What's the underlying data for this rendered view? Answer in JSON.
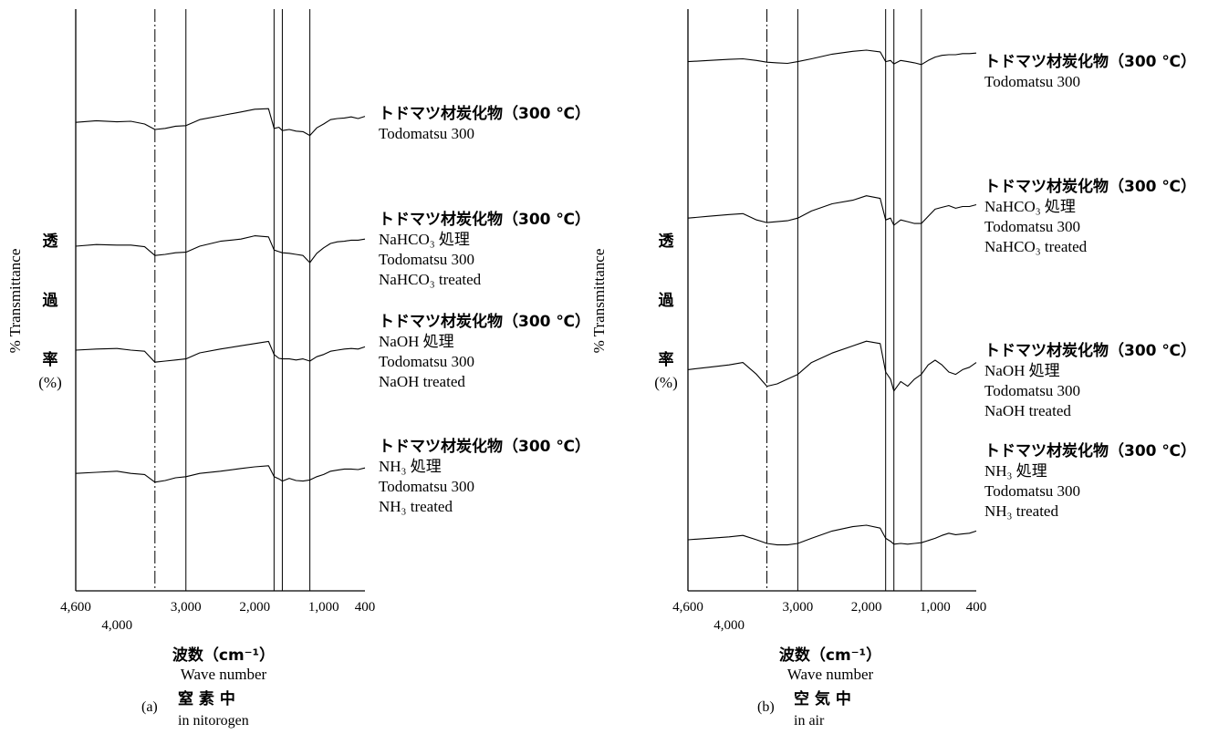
{
  "chart_data": [
    {
      "type": "line",
      "panel": "a",
      "xlabel_ja": "波数（cm⁻¹）",
      "xlabel_en": "Wave number",
      "ylabel_ja": [
        "透",
        "過",
        "率",
        "(%)"
      ],
      "ylabel_en": "% Transmittance",
      "caption_mark": "(a)",
      "caption_ja": "窒 素 中",
      "caption_en": "in nitorogen",
      "xlim": [
        4600,
        400
      ],
      "x_ticks": [
        "4,600",
        "3,000",
        "2,000",
        "1,000",
        "400"
      ],
      "x_ticks_lower": [
        "4,000"
      ],
      "reference_lines_cm1": [
        3450,
        3000,
        1720,
        1600,
        1200
      ],
      "series": [
        {
          "label": [
            "トドマツ材炭化物（300 ℃）",
            "Todomatsu 300"
          ],
          "x": [
            4600,
            4300,
            4000,
            3800,
            3600,
            3450,
            3300,
            3150,
            3000,
            2800,
            2500,
            2200,
            2000,
            1800,
            1720,
            1650,
            1600,
            1500,
            1400,
            1300,
            1200,
            1100,
            1000,
            900,
            800,
            700,
            600,
            500,
            400
          ],
          "y": [
            73,
            76,
            74,
            75,
            70,
            60,
            62,
            66,
            67,
            78,
            85,
            92,
            97,
            98,
            62,
            64,
            58,
            60,
            57,
            56,
            49,
            63,
            70,
            78,
            80,
            81,
            83,
            80,
            84
          ]
        },
        {
          "label": [
            "トドマツ材炭化物（300 ℃）",
            "NaHCO₃ 処理",
            "Todomatsu 300",
            "NaHCO₃ treated"
          ],
          "x": [
            4600,
            4300,
            4000,
            3800,
            3600,
            3450,
            3300,
            3150,
            3000,
            2800,
            2500,
            2200,
            2000,
            1800,
            1720,
            1650,
            1600,
            1500,
            1400,
            1300,
            1200,
            1100,
            1000,
            900,
            800,
            700,
            600,
            500,
            400
          ],
          "y": [
            55,
            58,
            57,
            57,
            54,
            38,
            40,
            43,
            44,
            55,
            64,
            68,
            74,
            72,
            48,
            45,
            43,
            42,
            40,
            38,
            25,
            42,
            52,
            60,
            63,
            64,
            66,
            66,
            68
          ]
        },
        {
          "label": [
            "トドマツ材炭化物（300 ℃）",
            "NaOH 処理",
            "Todomatsu 300",
            "NaOH treated"
          ],
          "x": [
            4600,
            4300,
            4000,
            3800,
            3600,
            3450,
            3300,
            3150,
            3000,
            2800,
            2500,
            2200,
            2000,
            1800,
            1720,
            1650,
            1600,
            1500,
            1400,
            1300,
            1200,
            1100,
            1000,
            900,
            800,
            700,
            600,
            500,
            400
          ],
          "y": [
            40,
            42,
            43,
            40,
            38,
            18,
            20,
            22,
            24,
            35,
            42,
            48,
            52,
            56,
            32,
            25,
            24,
            24,
            22,
            24,
            20,
            28,
            32,
            38,
            40,
            42,
            43,
            42,
            46
          ]
        },
        {
          "label": [
            "トドマツ材炭化物（300 ℃）",
            "NH₃ 処理",
            "Todomatsu 300",
            "NH₃ treated"
          ],
          "x": [
            4600,
            4300,
            4000,
            3800,
            3600,
            3450,
            3300,
            3150,
            3000,
            2800,
            2500,
            2200,
            2000,
            1800,
            1720,
            1650,
            1600,
            1500,
            1400,
            1300,
            1200,
            1100,
            1000,
            900,
            800,
            700,
            600,
            500,
            400
          ],
          "y": [
            18,
            20,
            22,
            18,
            16,
            2,
            5,
            10,
            12,
            18,
            22,
            27,
            30,
            32,
            12,
            8,
            4,
            9,
            5,
            4,
            6,
            12,
            16,
            22,
            24,
            26,
            26,
            25,
            28
          ]
        }
      ]
    },
    {
      "type": "line",
      "panel": "b",
      "xlabel_ja": "波数（cm⁻¹）",
      "xlabel_en": "Wave number",
      "ylabel_ja": [
        "透",
        "過",
        "率",
        "(%)"
      ],
      "ylabel_en": "% Transmittance",
      "caption_mark": "(b)",
      "caption_ja": "空 気 中",
      "caption_en": "in air",
      "xlim": [
        4600,
        400
      ],
      "x_ticks": [
        "4,600",
        "3,000",
        "2,000",
        "1,000",
        "400"
      ],
      "x_ticks_lower": [
        "4,000"
      ],
      "reference_lines_cm1": [
        3450,
        3000,
        1720,
        1600,
        1200
      ],
      "series": [
        {
          "label": [
            "トドマツ材炭化物（300 ℃）",
            "Todomatsu 300"
          ],
          "x": [
            4600,
            4300,
            4000,
            3800,
            3600,
            3450,
            3300,
            3150,
            3000,
            2800,
            2500,
            2200,
            2000,
            1800,
            1720,
            1650,
            1600,
            1500,
            1400,
            1300,
            1200,
            1100,
            1000,
            900,
            800,
            700,
            600,
            500,
            400
          ],
          "y": [
            80,
            82,
            84,
            85,
            82,
            79,
            78,
            77,
            80,
            85,
            93,
            98,
            100,
            97,
            80,
            82,
            76,
            82,
            80,
            78,
            75,
            82,
            88,
            91,
            92,
            92,
            94,
            94,
            95
          ]
        },
        {
          "label": [
            "トドマツ材炭化物（300 ℃）",
            "NaHCO₃ 処理",
            "Todomatsu 300",
            "NaHCO₃ treated"
          ],
          "x": [
            4600,
            4300,
            4000,
            3800,
            3600,
            3450,
            3300,
            3150,
            3000,
            2800,
            2500,
            2200,
            2000,
            1800,
            1720,
            1650,
            1600,
            1500,
            1400,
            1300,
            1200,
            1100,
            1000,
            900,
            800,
            700,
            600,
            500,
            400
          ],
          "y": [
            60,
            62,
            64,
            65,
            58,
            55,
            56,
            57,
            60,
            68,
            76,
            80,
            85,
            82,
            58,
            60,
            52,
            58,
            56,
            54,
            54,
            62,
            70,
            72,
            74,
            71,
            73,
            73,
            75
          ]
        },
        {
          "label": [
            "トドマツ材炭化物（300 ℃）",
            "NaOH 処理",
            "Todomatsu 300",
            "NaOH treated"
          ],
          "x": [
            4600,
            4300,
            4000,
            3800,
            3600,
            3450,
            3300,
            3150,
            3000,
            2800,
            2500,
            2200,
            2000,
            1800,
            1720,
            1650,
            1600,
            1500,
            1400,
            1300,
            1200,
            1100,
            1000,
            900,
            800,
            700,
            600,
            500,
            400
          ],
          "y": [
            42,
            44,
            46,
            48,
            38,
            28,
            30,
            34,
            38,
            48,
            56,
            62,
            66,
            64,
            40,
            34,
            24,
            32,
            28,
            34,
            38,
            46,
            50,
            46,
            40,
            38,
            42,
            44,
            48
          ]
        },
        {
          "label": [
            "トドマツ材炭化物（300 ℃）",
            "NH₃ 処理",
            "Todomatsu 300",
            "NH₃ treated"
          ],
          "x": [
            4600,
            4300,
            4000,
            3800,
            3600,
            3450,
            3300,
            3150,
            3000,
            2800,
            2500,
            2200,
            2000,
            1800,
            1720,
            1650,
            1600,
            1500,
            1400,
            1300,
            1200,
            1100,
            1000,
            900,
            800,
            700,
            600,
            500,
            400
          ],
          "y": [
            10,
            12,
            14,
            16,
            10,
            5,
            3,
            3,
            5,
            12,
            22,
            28,
            30,
            26,
            12,
            8,
            4,
            5,
            4,
            5,
            6,
            9,
            12,
            16,
            19,
            17,
            18,
            19,
            22
          ]
        }
      ]
    }
  ]
}
